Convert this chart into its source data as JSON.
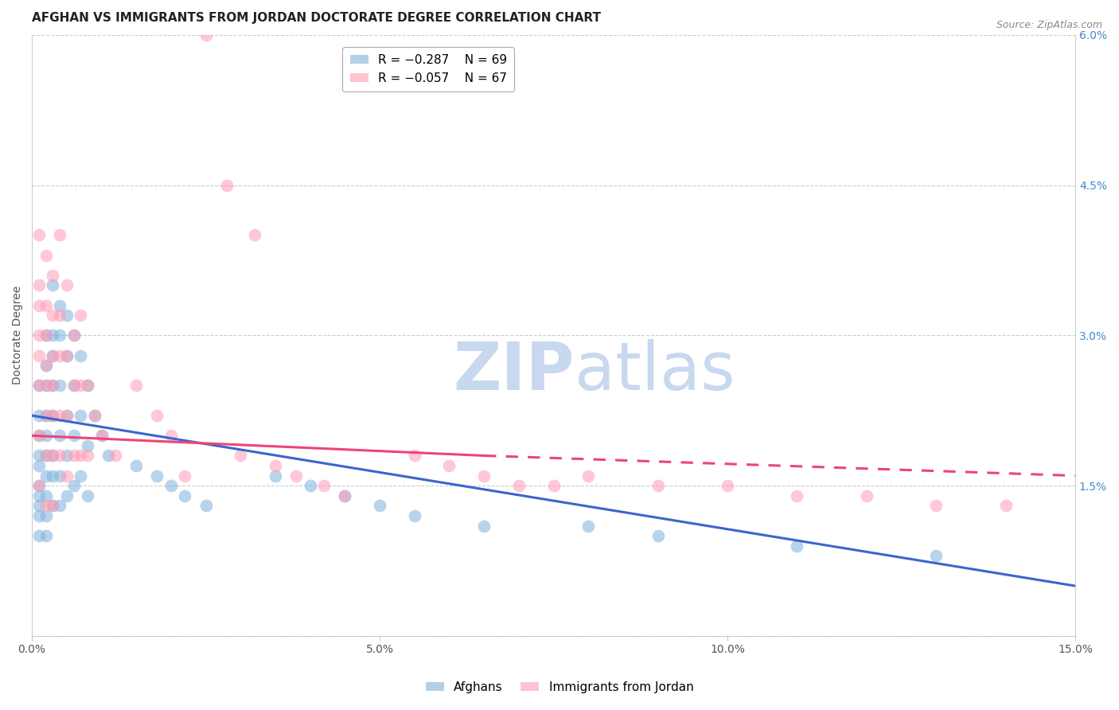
{
  "title": "AFGHAN VS IMMIGRANTS FROM JORDAN DOCTORATE DEGREE CORRELATION CHART",
  "source": "Source: ZipAtlas.com",
  "ylabel": "Doctorate Degree",
  "xlim": [
    0,
    0.15
  ],
  "ylim": [
    0,
    0.06
  ],
  "yticks": [
    0.0,
    0.015,
    0.03,
    0.045,
    0.06
  ],
  "ytick_labels": [
    "",
    "1.5%",
    "3.0%",
    "4.5%",
    "6.0%"
  ],
  "xticks": [
    0,
    0.05,
    0.1,
    0.15
  ],
  "xtick_labels": [
    "0.0%",
    "5.0%",
    "10.0%",
    "15.0%"
  ],
  "color_afghan": "#7EB2DD",
  "color_jordan": "#FF9BB5",
  "color_trendline_afghan": "#3A66CC",
  "color_trendline_jordan": "#EE4477",
  "background_color": "#ffffff",
  "grid_color": "#cccccc",
  "watermark_zip_color": "#c8d8ee",
  "watermark_atlas_color": "#c8d8ee",
  "afghans_x": [
    0.001,
    0.001,
    0.001,
    0.001,
    0.001,
    0.001,
    0.001,
    0.001,
    0.001,
    0.001,
    0.002,
    0.002,
    0.002,
    0.002,
    0.002,
    0.002,
    0.002,
    0.002,
    0.002,
    0.002,
    0.003,
    0.003,
    0.003,
    0.003,
    0.003,
    0.003,
    0.003,
    0.003,
    0.004,
    0.004,
    0.004,
    0.004,
    0.004,
    0.004,
    0.005,
    0.005,
    0.005,
    0.005,
    0.005,
    0.006,
    0.006,
    0.006,
    0.006,
    0.007,
    0.007,
    0.007,
    0.008,
    0.008,
    0.008,
    0.009,
    0.01,
    0.011,
    0.015,
    0.018,
    0.02,
    0.022,
    0.025,
    0.035,
    0.04,
    0.045,
    0.05,
    0.055,
    0.065,
    0.08,
    0.09,
    0.11,
    0.13
  ],
  "afghans_y": [
    0.025,
    0.022,
    0.02,
    0.018,
    0.017,
    0.015,
    0.014,
    0.013,
    0.012,
    0.01,
    0.03,
    0.027,
    0.025,
    0.022,
    0.02,
    0.018,
    0.016,
    0.014,
    0.012,
    0.01,
    0.035,
    0.03,
    0.028,
    0.025,
    0.022,
    0.018,
    0.016,
    0.013,
    0.033,
    0.03,
    0.025,
    0.02,
    0.016,
    0.013,
    0.032,
    0.028,
    0.022,
    0.018,
    0.014,
    0.03,
    0.025,
    0.02,
    0.015,
    0.028,
    0.022,
    0.016,
    0.025,
    0.019,
    0.014,
    0.022,
    0.02,
    0.018,
    0.017,
    0.016,
    0.015,
    0.014,
    0.013,
    0.016,
    0.015,
    0.014,
    0.013,
    0.012,
    0.011,
    0.011,
    0.01,
    0.009,
    0.008
  ],
  "jordan_x": [
    0.001,
    0.001,
    0.001,
    0.001,
    0.001,
    0.001,
    0.001,
    0.001,
    0.002,
    0.002,
    0.002,
    0.002,
    0.002,
    0.002,
    0.002,
    0.002,
    0.003,
    0.003,
    0.003,
    0.003,
    0.003,
    0.003,
    0.003,
    0.004,
    0.004,
    0.004,
    0.004,
    0.004,
    0.005,
    0.005,
    0.005,
    0.005,
    0.006,
    0.006,
    0.006,
    0.007,
    0.007,
    0.007,
    0.008,
    0.008,
    0.009,
    0.01,
    0.012,
    0.015,
    0.018,
    0.02,
    0.022,
    0.03,
    0.035,
    0.038,
    0.042,
    0.045,
    0.055,
    0.06,
    0.065,
    0.07,
    0.075,
    0.08,
    0.09,
    0.1,
    0.11,
    0.12,
    0.13,
    0.14,
    0.025,
    0.028,
    0.032
  ],
  "jordan_y": [
    0.04,
    0.035,
    0.033,
    0.03,
    0.028,
    0.025,
    0.02,
    0.015,
    0.038,
    0.033,
    0.03,
    0.027,
    0.025,
    0.022,
    0.018,
    0.013,
    0.036,
    0.032,
    0.028,
    0.025,
    0.022,
    0.018,
    0.013,
    0.04,
    0.032,
    0.028,
    0.022,
    0.018,
    0.035,
    0.028,
    0.022,
    0.016,
    0.03,
    0.025,
    0.018,
    0.032,
    0.025,
    0.018,
    0.025,
    0.018,
    0.022,
    0.02,
    0.018,
    0.025,
    0.022,
    0.02,
    0.016,
    0.018,
    0.017,
    0.016,
    0.015,
    0.014,
    0.018,
    0.017,
    0.016,
    0.015,
    0.015,
    0.016,
    0.015,
    0.015,
    0.014,
    0.014,
    0.013,
    0.013,
    0.06,
    0.045,
    0.04
  ],
  "trendline_blue_x0": 0.0,
  "trendline_blue_y0": 0.022,
  "trendline_blue_x1": 0.15,
  "trendline_blue_y1": 0.005,
  "trendline_pink_x0": 0.0,
  "trendline_pink_y0": 0.02,
  "trendline_pink_solid_x1": 0.065,
  "trendline_pink_solid_y1": 0.018,
  "trendline_pink_dash_x1": 0.15,
  "trendline_pink_dash_y1": 0.016,
  "title_fontsize": 11,
  "source_fontsize": 9,
  "axis_label_fontsize": 10,
  "tick_fontsize": 10,
  "legend_fontsize": 11
}
